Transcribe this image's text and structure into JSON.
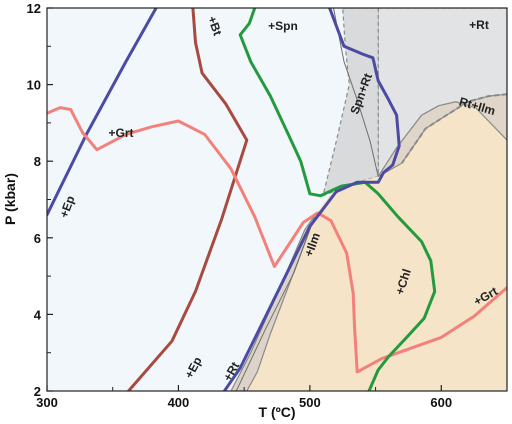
{
  "chart_data": {
    "type": "line",
    "xlabel": "T (ºC)",
    "ylabel": "P (kbar)",
    "xlim": [
      300,
      650
    ],
    "ylim": [
      2,
      12
    ],
    "x_ticks": [
      300,
      400,
      500,
      600
    ],
    "y_ticks": [
      2,
      4,
      6,
      8,
      10,
      12
    ],
    "grid": false,
    "legend": "none",
    "colors": {
      "background_field": "#f1f7fb",
      "rt_field": "#e2e3e4",
      "spn_rt_field": "#d8dadc",
      "ilm_field": "#f5e4c8",
      "rt_ilm_field": "#dfd5c8",
      "lower_wedge": "#ddd3c8",
      "field_border": "#8a8a8a",
      "ep_line": "#4b4ba3",
      "bt_line": "#a84a40",
      "grt_line": "#f4807a",
      "spn_chl_line": "#239a3e"
    },
    "fields": [
      {
        "name": "+Rt",
        "polygon": [
          [
            552,
            12
          ],
          [
            650,
            12
          ],
          [
            650,
            8.55
          ],
          [
            626,
            9.4
          ],
          [
            611,
            9.55
          ],
          [
            598,
            9.45
          ],
          [
            585,
            9.2
          ],
          [
            566,
            8.35
          ],
          [
            552,
            7.6
          ]
        ]
      },
      {
        "name": "Spn+Rt",
        "polygon": [
          [
            525,
            12
          ],
          [
            552,
            12
          ],
          [
            552,
            7.6
          ],
          [
            536,
            7.45
          ],
          [
            510,
            7.1
          ],
          [
            520,
            8.5
          ],
          [
            530,
            10.0
          ],
          [
            527,
            11.0
          ]
        ]
      },
      {
        "name": "+Ilm",
        "polygon": [
          [
            452,
            2
          ],
          [
            650,
            2
          ],
          [
            650,
            8.55
          ],
          [
            626,
            9.4
          ],
          [
            611,
            9.55
          ],
          [
            598,
            9.45
          ],
          [
            585,
            9.2
          ],
          [
            566,
            8.35
          ],
          [
            552,
            7.6
          ],
          [
            536,
            7.45
          ],
          [
            515,
            7.1
          ],
          [
            504,
            6.6
          ],
          [
            490,
            5.3
          ],
          [
            470,
            3.5
          ],
          [
            460,
            2.5
          ]
        ]
      },
      {
        "name": "Rt+Ilm",
        "polygon": [
          [
            650,
            8.55
          ],
          [
            650,
            9.75
          ],
          [
            636,
            9.7
          ],
          [
            620,
            9.55
          ],
          [
            604,
            9.2
          ],
          [
            588,
            8.85
          ],
          [
            570,
            7.95
          ],
          [
            552,
            7.6
          ],
          [
            566,
            8.35
          ],
          [
            585,
            9.2
          ],
          [
            598,
            9.45
          ],
          [
            611,
            9.55
          ],
          [
            626,
            9.4
          ]
        ]
      },
      {
        "name": "lower_wedge",
        "polygon": [
          [
            440,
            2
          ],
          [
            452,
            2
          ],
          [
            460,
            2.5
          ],
          [
            470,
            3.5
          ],
          [
            490,
            5.3
          ],
          [
            504,
            6.6
          ],
          [
            496,
            6.2
          ],
          [
            476,
            4.6
          ],
          [
            455,
            3.0
          ]
        ]
      }
    ],
    "series": [
      {
        "label": "+Ep",
        "color": "ep",
        "points": [
          [
            300,
            6.6
          ],
          [
            330,
            8.7
          ],
          [
            360,
            10.6
          ],
          [
            383,
            12
          ]
        ]
      },
      {
        "label": "+Bt",
        "color": "bt",
        "points": [
          [
            411,
            12
          ],
          [
            413,
            11.1
          ],
          [
            418,
            10.3
          ],
          [
            436,
            9.5
          ],
          [
            452,
            8.55
          ],
          [
            433,
            6.5
          ],
          [
            413,
            4.6
          ],
          [
            395,
            3.3
          ],
          [
            362,
            2
          ]
        ]
      },
      {
        "label": "+Grt",
        "color": "grt",
        "points": [
          [
            300,
            9.25
          ],
          [
            310,
            9.4
          ],
          [
            318,
            9.35
          ],
          [
            327,
            8.75
          ],
          [
            338,
            8.3
          ],
          [
            360,
            8.7
          ],
          [
            380,
            8.9
          ],
          [
            400,
            9.05
          ],
          [
            420,
            8.7
          ],
          [
            440,
            7.8
          ],
          [
            458,
            6.55
          ],
          [
            473,
            5.25
          ],
          [
            495,
            6.4
          ],
          [
            506,
            6.65
          ],
          [
            516,
            6.45
          ],
          [
            528,
            5.6
          ],
          [
            533,
            4.55
          ],
          [
            534,
            3.7
          ],
          [
            536,
            2.5
          ],
          [
            555,
            2.85
          ],
          [
            600,
            3.4
          ],
          [
            625,
            3.95
          ],
          [
            650,
            4.7
          ]
        ]
      },
      {
        "label": "+Spn",
        "color": "spn_chl",
        "points": [
          [
            458,
            12
          ],
          [
            454,
            11.6
          ],
          [
            447,
            11.3
          ],
          [
            455,
            10.6
          ],
          [
            470,
            9.7
          ],
          [
            485,
            8.6
          ],
          [
            493,
            8.0
          ],
          [
            500,
            7.15
          ],
          [
            508,
            7.1
          ],
          [
            524,
            7.35
          ],
          [
            542,
            7.45
          ],
          [
            552,
            7.15
          ],
          [
            567,
            6.55
          ],
          [
            585,
            5.9
          ],
          [
            592,
            5.4
          ],
          [
            595,
            4.6
          ],
          [
            587,
            3.9
          ],
          [
            575,
            3.45
          ],
          [
            560,
            2.9
          ],
          [
            552,
            2.55
          ],
          [
            545,
            2
          ]
        ]
      },
      {
        "label": "Spn+Rt boundary",
        "color": "ep",
        "points": [
          [
            515,
            12
          ],
          [
            526,
            11
          ],
          [
            540,
            10.8
          ],
          [
            548,
            10.7
          ],
          [
            552,
            10.1
          ],
          [
            560,
            9.6
          ],
          [
            566,
            9.2
          ],
          [
            568,
            8.4
          ],
          [
            563,
            7.9
          ],
          [
            556,
            7.7
          ],
          [
            552,
            7.45
          ],
          [
            548,
            7.45
          ],
          [
            536,
            7.45
          ],
          [
            520,
            7.2
          ],
          [
            500,
            6.3
          ],
          [
            470,
            4.2
          ],
          [
            447,
            2.6
          ],
          [
            435,
            2
          ]
        ]
      }
    ],
    "labels": [
      "+Spn",
      "+Rt",
      "+Bt",
      "+Grt",
      "+Ep",
      "Spn+Rt",
      "Rt+Ilm",
      "+Ilm",
      "+Chl",
      "+Grt",
      "+Ep",
      "+Rt"
    ]
  }
}
